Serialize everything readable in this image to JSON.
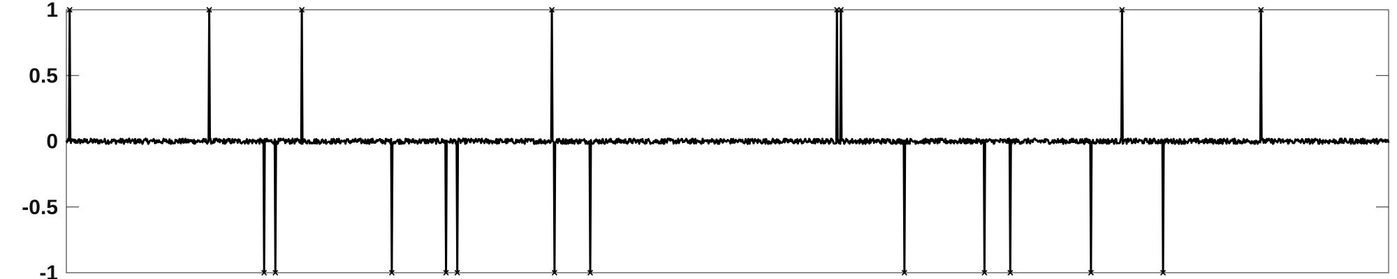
{
  "chart_data": {
    "type": "line",
    "title": "",
    "xlabel": "",
    "ylabel": "",
    "xlim": [
      1,
      2000
    ],
    "ylim": [
      -1,
      1
    ],
    "y_ticks": [
      {
        "value": 1,
        "label": "1"
      },
      {
        "value": 0.5,
        "label": "0.5"
      },
      {
        "value": 0,
        "label": "0"
      },
      {
        "value": -0.5,
        "label": "-0.5"
      },
      {
        "value": -1,
        "label": "-1"
      }
    ],
    "grid": false,
    "legend": "none",
    "baseline": 0,
    "noise_amplitude": 0.02,
    "line_color": "#000000",
    "spikes": [
      {
        "x": 6,
        "y": 1
      },
      {
        "x": 217,
        "y": 1
      },
      {
        "x": 300,
        "y": -1
      },
      {
        "x": 317,
        "y": -1
      },
      {
        "x": 357,
        "y": 1
      },
      {
        "x": 493,
        "y": -1
      },
      {
        "x": 575,
        "y": -1
      },
      {
        "x": 592,
        "y": -1
      },
      {
        "x": 735,
        "y": 1
      },
      {
        "x": 739,
        "y": -1
      },
      {
        "x": 793,
        "y": -1
      },
      {
        "x": 1166,
        "y": 1
      },
      {
        "x": 1172,
        "y": 1
      },
      {
        "x": 1268,
        "y": -1
      },
      {
        "x": 1389,
        "y": -1
      },
      {
        "x": 1428,
        "y": -1
      },
      {
        "x": 1550,
        "y": -1
      },
      {
        "x": 1597,
        "y": 1
      },
      {
        "x": 1659,
        "y": -1
      },
      {
        "x": 1807,
        "y": 1
      }
    ]
  }
}
